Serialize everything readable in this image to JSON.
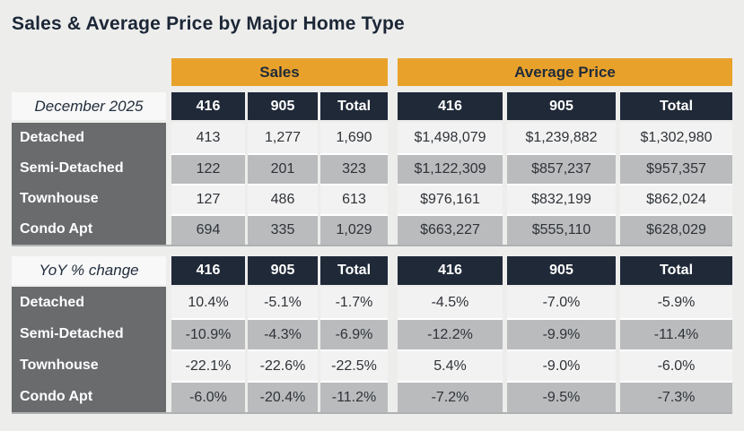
{
  "page": {
    "title": "Sales & Average Price by Major Home Type"
  },
  "group_headers": {
    "sales": "Sales",
    "average_price": "Average Price"
  },
  "tables": [
    {
      "corner": "December 2025",
      "headers": [
        "416",
        "905",
        "Total",
        "416",
        "905",
        "Total"
      ],
      "rows": [
        {
          "label": "Detached",
          "values": [
            "413",
            "1,277",
            "1,690",
            "$1,498,079",
            "$1,239,882",
            "$1,302,980"
          ]
        },
        {
          "label": "Semi-Detached",
          "values": [
            "122",
            "201",
            "323",
            "$1,122,309",
            "$857,237",
            "$957,357"
          ]
        },
        {
          "label": "Townhouse",
          "values": [
            "127",
            "486",
            "613",
            "$976,161",
            "$832,199",
            "$862,024"
          ]
        },
        {
          "label": "Condo Apt",
          "values": [
            "694",
            "335",
            "1,029",
            "$663,227",
            "$555,110",
            "$628,029"
          ]
        }
      ]
    },
    {
      "corner": "YoY % change",
      "headers": [
        "416",
        "905",
        "Total",
        "416",
        "905",
        "Total"
      ],
      "rows": [
        {
          "label": "Detached",
          "values": [
            "10.4%",
            "-5.1%",
            "-1.7%",
            "-4.5%",
            "-7.0%",
            "-5.9%"
          ]
        },
        {
          "label": "Semi-Detached",
          "values": [
            "-10.9%",
            "-4.3%",
            "-6.9%",
            "-12.2%",
            "-9.9%",
            "-11.4%"
          ]
        },
        {
          "label": "Townhouse",
          "values": [
            "-22.1%",
            "-22.6%",
            "-22.5%",
            "5.4%",
            "-9.0%",
            "-6.0%"
          ]
        },
        {
          "label": "Condo Apt",
          "values": [
            "-6.0%",
            "-20.4%",
            "-11.2%",
            "-7.2%",
            "-9.5%",
            "-7.3%"
          ]
        }
      ]
    }
  ],
  "colors": {
    "accent_orange": "#E8A22B",
    "header_navy": "#202938",
    "row_label_gray": "#696B6D",
    "row_light": "#F2F2F2",
    "row_shaded": "#B9BBBD",
    "page_background": "#EDEDEC"
  },
  "chart_data": {
    "type": "table",
    "title": "Sales & Average Price by Major Home Type",
    "period": "December 2025",
    "column_groups": [
      "Sales",
      "Average Price"
    ],
    "columns": [
      "416",
      "905",
      "Total"
    ],
    "home_types": [
      "Detached",
      "Semi-Detached",
      "Townhouse",
      "Condo Apt"
    ],
    "sales": {
      "Detached": [
        413,
        1277,
        1690
      ],
      "Semi-Detached": [
        122,
        201,
        323
      ],
      "Townhouse": [
        127,
        486,
        613
      ],
      "Condo Apt": [
        694,
        335,
        1029
      ]
    },
    "average_price": {
      "Detached": [
        1498079,
        1239882,
        1302980
      ],
      "Semi-Detached": [
        1122309,
        857237,
        957357
      ],
      "Townhouse": [
        976161,
        832199,
        862024
      ],
      "Condo Apt": [
        663227,
        555110,
        628029
      ]
    },
    "yoy_change_sales_pct": {
      "Detached": [
        10.4,
        -5.1,
        -1.7
      ],
      "Semi-Detached": [
        -10.9,
        -4.3,
        -6.9
      ],
      "Townhouse": [
        -22.1,
        -22.6,
        -22.5
      ],
      "Condo Apt": [
        -6.0,
        -20.4,
        -11.2
      ]
    },
    "yoy_change_average_price_pct": {
      "Detached": [
        -4.5,
        -7.0,
        -5.9
      ],
      "Semi-Detached": [
        -12.2,
        -9.9,
        -11.4
      ],
      "Townhouse": [
        5.4,
        -9.0,
        -6.0
      ],
      "Condo Apt": [
        -7.2,
        -9.5,
        -7.3
      ]
    }
  }
}
